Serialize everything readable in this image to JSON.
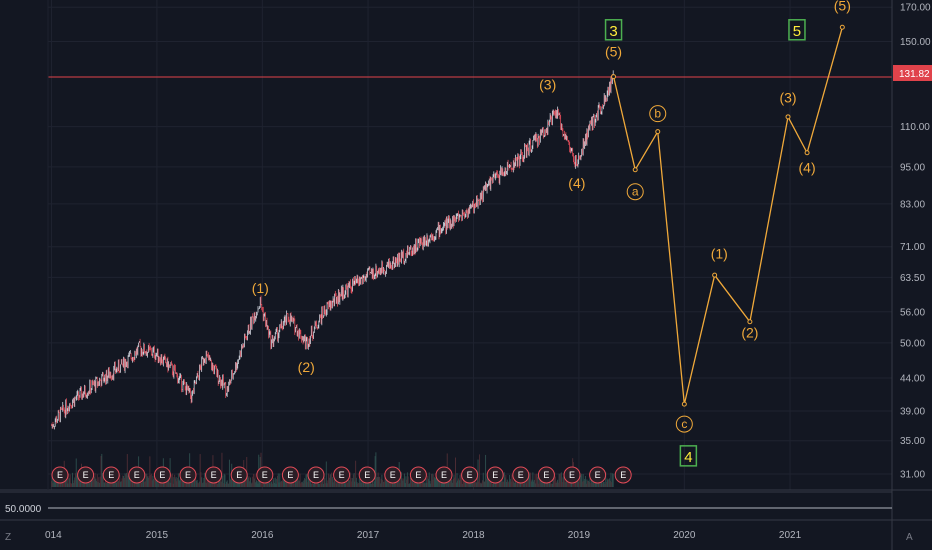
{
  "price_axis_labels": [
    "170.00",
    "150.00",
    "131.82",
    "110.00",
    "95.00",
    "83.00",
    "71.00",
    "63.50",
    "56.00",
    "50.00",
    "44.00",
    "39.00",
    "35.00",
    "31.00"
  ],
  "last_price": "131.82",
  "time_axis_labels": [
    "014",
    "2015",
    "2016",
    "2017",
    "2018",
    "2019",
    "2020",
    "2021"
  ],
  "subpane_value": "50.0000",
  "corner_left": "Z",
  "corner_right": "A",
  "earnings_marker": "E",
  "earnings_count": 23,
  "colors": {
    "bg": "#131722",
    "wave": "#f0a93a",
    "degree": "#ffeb3b",
    "degree_border": "#4caf50",
    "candle_up": "#cfd3dc",
    "candle_down": "#e24b58",
    "price_line": "#e0434b"
  },
  "chart_data": {
    "type": "line",
    "y_scale": "log",
    "ylim": [
      30,
      172
    ],
    "xlim": [
      "2013-12-20",
      "2021-12-20"
    ],
    "price_series": [
      [
        "2014-01-01",
        37
      ],
      [
        "2014-03-01",
        40
      ],
      [
        "2014-06-01",
        43
      ],
      [
        "2014-09-01",
        46
      ],
      [
        "2014-11-01",
        49
      ],
      [
        "2015-01-01",
        48
      ],
      [
        "2015-03-01",
        45
      ],
      [
        "2015-05-01",
        41
      ],
      [
        "2015-06-15",
        48
      ],
      [
        "2015-09-01",
        42
      ],
      [
        "2015-10-15",
        48
      ],
      [
        "2015-12-01",
        55
      ],
      [
        "2015-12-25",
        58
      ],
      [
        "2016-02-01",
        50
      ],
      [
        "2016-04-01",
        55
      ],
      [
        "2016-06-01",
        50
      ],
      [
        "2016-08-01",
        56
      ],
      [
        "2016-10-01",
        60
      ],
      [
        "2017-01-01",
        64
      ],
      [
        "2017-04-01",
        67
      ],
      [
        "2017-07-01",
        72
      ],
      [
        "2017-10-01",
        77
      ],
      [
        "2017-12-31",
        82
      ],
      [
        "2018-03-01",
        90
      ],
      [
        "2018-06-01",
        97
      ],
      [
        "2018-09-01",
        108
      ],
      [
        "2018-10-15",
        116
      ],
      [
        "2018-12-25",
        95
      ],
      [
        "2019-02-01",
        108
      ],
      [
        "2019-04-01",
        122
      ],
      [
        "2019-05-01",
        132
      ]
    ],
    "projection_path": [
      [
        "2019-05-01",
        132,
        "(5)"
      ],
      [
        "2019-07-15",
        94,
        "a"
      ],
      [
        "2019-10-01",
        108,
        "b"
      ],
      [
        "2020-01-01",
        40,
        "c"
      ],
      [
        "2020-04-15",
        64,
        "(1)"
      ],
      [
        "2020-08-15",
        54,
        "(2)"
      ],
      [
        "2020-12-25",
        114,
        "(3)"
      ],
      [
        "2021-03-01",
        100,
        "(4)"
      ],
      [
        "2021-07-01",
        158,
        "(5)"
      ]
    ],
    "wave_labels": [
      {
        "text": "(1)",
        "date": "2015-12-25",
        "price": 60
      },
      {
        "text": "(2)",
        "date": "2016-06-01",
        "price": 45
      },
      {
        "text": "(3)",
        "date": "2018-09-15",
        "price": 126
      },
      {
        "text": "(4)",
        "date": "2018-12-25",
        "price": 88
      },
      {
        "text": "(5)",
        "date": "2019-05-01",
        "price": 142
      },
      {
        "text": "(1)",
        "date": "2020-05-01",
        "price": 68
      },
      {
        "text": "(2)",
        "date": "2020-08-15",
        "price": 51
      },
      {
        "text": "(3)",
        "date": "2020-12-25",
        "price": 120
      },
      {
        "text": "(4)",
        "date": "2021-03-01",
        "price": 93
      },
      {
        "text": "(5)",
        "date": "2021-07-01",
        "price": 168
      }
    ],
    "degree_labels": [
      {
        "text": "3",
        "date": "2019-05-01",
        "price": 156
      },
      {
        "text": "5",
        "date": "2021-01-25",
        "price": 156
      },
      {
        "text": "4",
        "date": "2020-01-15",
        "price": 33
      }
    ]
  }
}
